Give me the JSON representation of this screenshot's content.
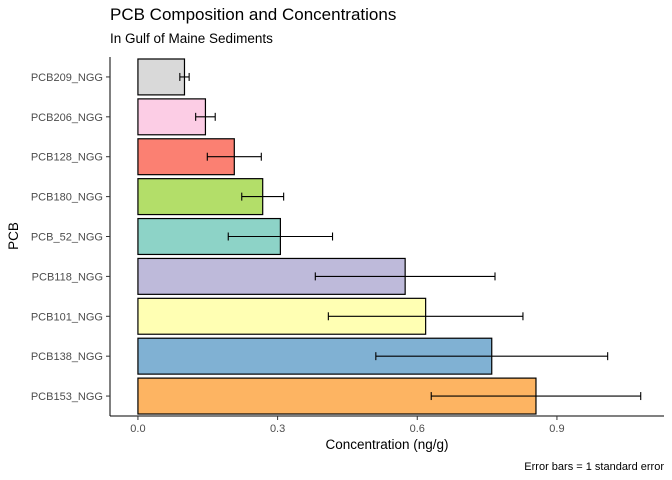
{
  "chart_data": {
    "type": "bar",
    "orientation": "horizontal",
    "title": "PCB Composition and Concentrations",
    "subtitle": "In Gulf of Maine Sediments",
    "xlabel": "Concentration (ng/g)",
    "ylabel": "PCB",
    "caption": "Error bars = 1 standard error",
    "xlim": [
      -0.06,
      1.13
    ],
    "xticks": [
      0.0,
      0.3,
      0.6,
      0.9
    ],
    "xtick_labels": [
      "0.0",
      "0.3",
      "0.6",
      "0.9"
    ],
    "grid": false,
    "categories": [
      "PCB209_NGG",
      "PCB206_NGG",
      "PCB128_NGG",
      "PCB180_NGG",
      "PCB_52_NGG",
      "PCB118_NGG",
      "PCB101_NGG",
      "PCB138_NGG",
      "PCB153_NGG"
    ],
    "values": [
      0.1,
      0.145,
      0.207,
      0.268,
      0.306,
      0.574,
      0.618,
      0.76,
      0.855
    ],
    "error_low": [
      0.09,
      0.124,
      0.149,
      0.223,
      0.194,
      0.381,
      0.409,
      0.511,
      0.63
    ],
    "error_high": [
      0.11,
      0.166,
      0.265,
      0.313,
      0.418,
      0.767,
      0.827,
      1.009,
      1.08
    ],
    "colors": [
      "#d9d9d9",
      "#fccde5",
      "#fb8072",
      "#b3de69",
      "#8dd3c7",
      "#bebada",
      "#ffffb3",
      "#80b1d3",
      "#fdb462"
    ]
  }
}
